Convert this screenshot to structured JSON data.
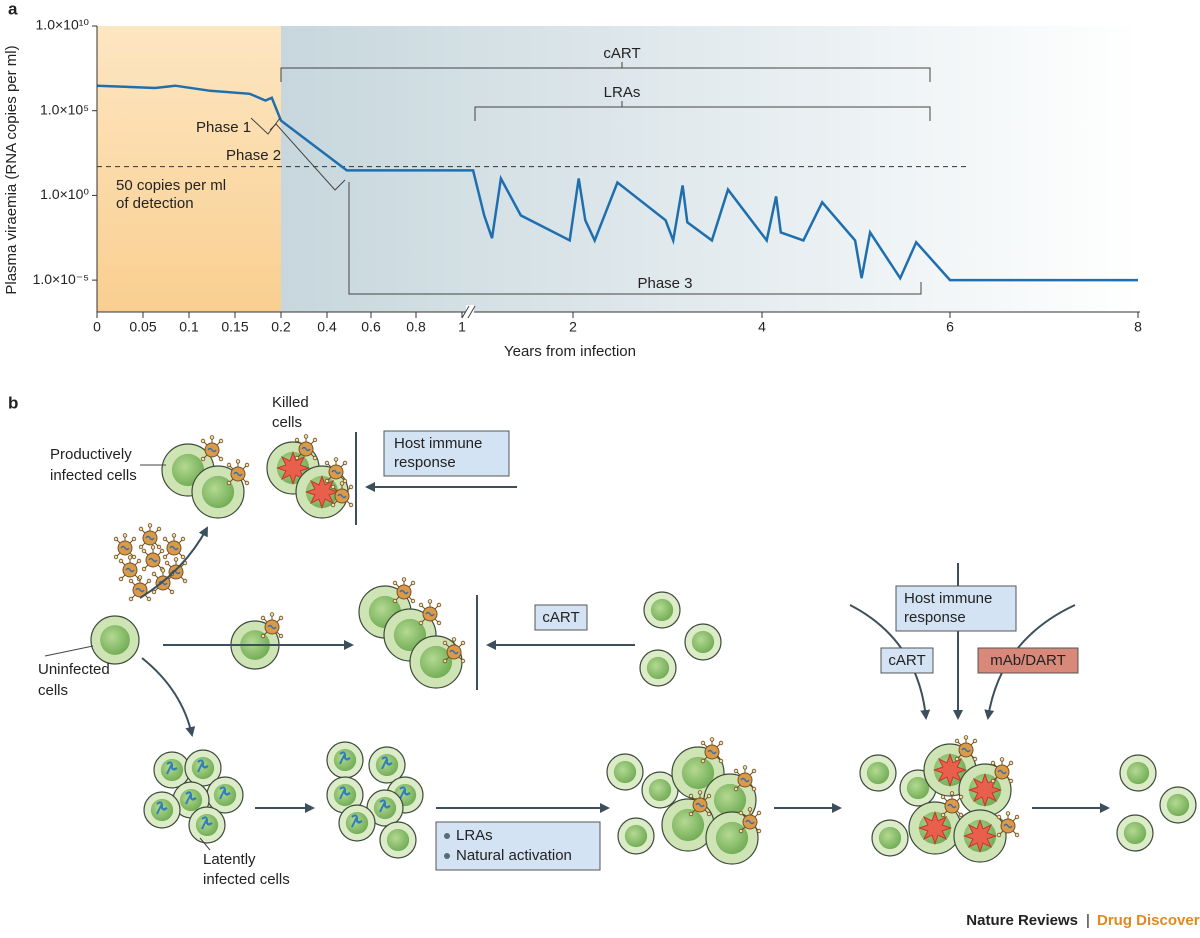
{
  "panel_labels": [
    "a",
    "b"
  ],
  "chart_data": {
    "type": "line",
    "ylabel": "Plasma viraemia (RNA copies per ml)",
    "xlabel": "Years from infection",
    "x": [
      0,
      0.063,
      0.085,
      0.123,
      0.166,
      0.183,
      0.19,
      0.2,
      0.49,
      1.1,
      1.2,
      1.27,
      1.35,
      1.53,
      1.97,
      2.06,
      2.13,
      2.23,
      2.47,
      2.98,
      3.06,
      3.16,
      3.21,
      3.47,
      3.64,
      4.05,
      4.15,
      4.2,
      4.44,
      4.64,
      4.99,
      5.06,
      5.15,
      5.47,
      5.64,
      6.0,
      8
    ],
    "values": [
      3000000,
      2200000,
      3000000,
      1500000,
      1000000,
      400000,
      580000,
      26000,
      30,
      30,
      0.066,
      0.003,
      10,
      0.066,
      0.0022,
      10,
      0.034,
      0.0022,
      5.8,
      0.034,
      0.0022,
      3.9,
      0.026,
      0.0022,
      2.2,
      0.0022,
      0.87,
      0.0066,
      0.0022,
      0.39,
      0.0022,
      1.3e-05,
      0.0066,
      1.3e-05,
      0.0017,
      1e-05,
      1e-05
    ],
    "color": "#1f6fae",
    "log_y": true,
    "ylim": [
      1e-07,
      10000000000
    ],
    "yticks": [
      {
        "value": 1e-05,
        "label": "1.0×10⁻⁵"
      },
      {
        "value": 1,
        "label": "1.0×10⁰"
      },
      {
        "value": 100000,
        "label": "1.0×10⁵"
      },
      {
        "value": 10000000000,
        "label": "1.0×10¹⁰"
      }
    ],
    "xticks": [
      0,
      0.05,
      0.1,
      0.15,
      0.2,
      0.4,
      0.6,
      0.8,
      1,
      2,
      4,
      6,
      8
    ],
    "threshold_line": 50,
    "annotations": [
      "cART",
      "LRAs",
      "Phase 1",
      "Phase 2",
      "Phase 3",
      "50 copies per ml",
      "of detection"
    ]
  },
  "diagram": {
    "productively_infected_cells": [
      "Productively",
      "infected cells"
    ],
    "killed_cells": [
      "Killed",
      "cells"
    ],
    "host_immune_response_1": [
      "Host immune",
      "response"
    ],
    "cart_1": "cART",
    "uninfected_cells": [
      "Uninfected",
      "cells"
    ],
    "latently_infected_cells": [
      "Latently",
      "infected cells"
    ],
    "activation": [
      "LRAs",
      "Natural activation"
    ],
    "host_immune_response_2": [
      "Host immune",
      "response"
    ],
    "cart_2": "cART",
    "mab_dart": "mAb/DART"
  },
  "footer": {
    "journal": "Nature Reviews",
    "separator": "|",
    "section": "Drug Discovery"
  }
}
